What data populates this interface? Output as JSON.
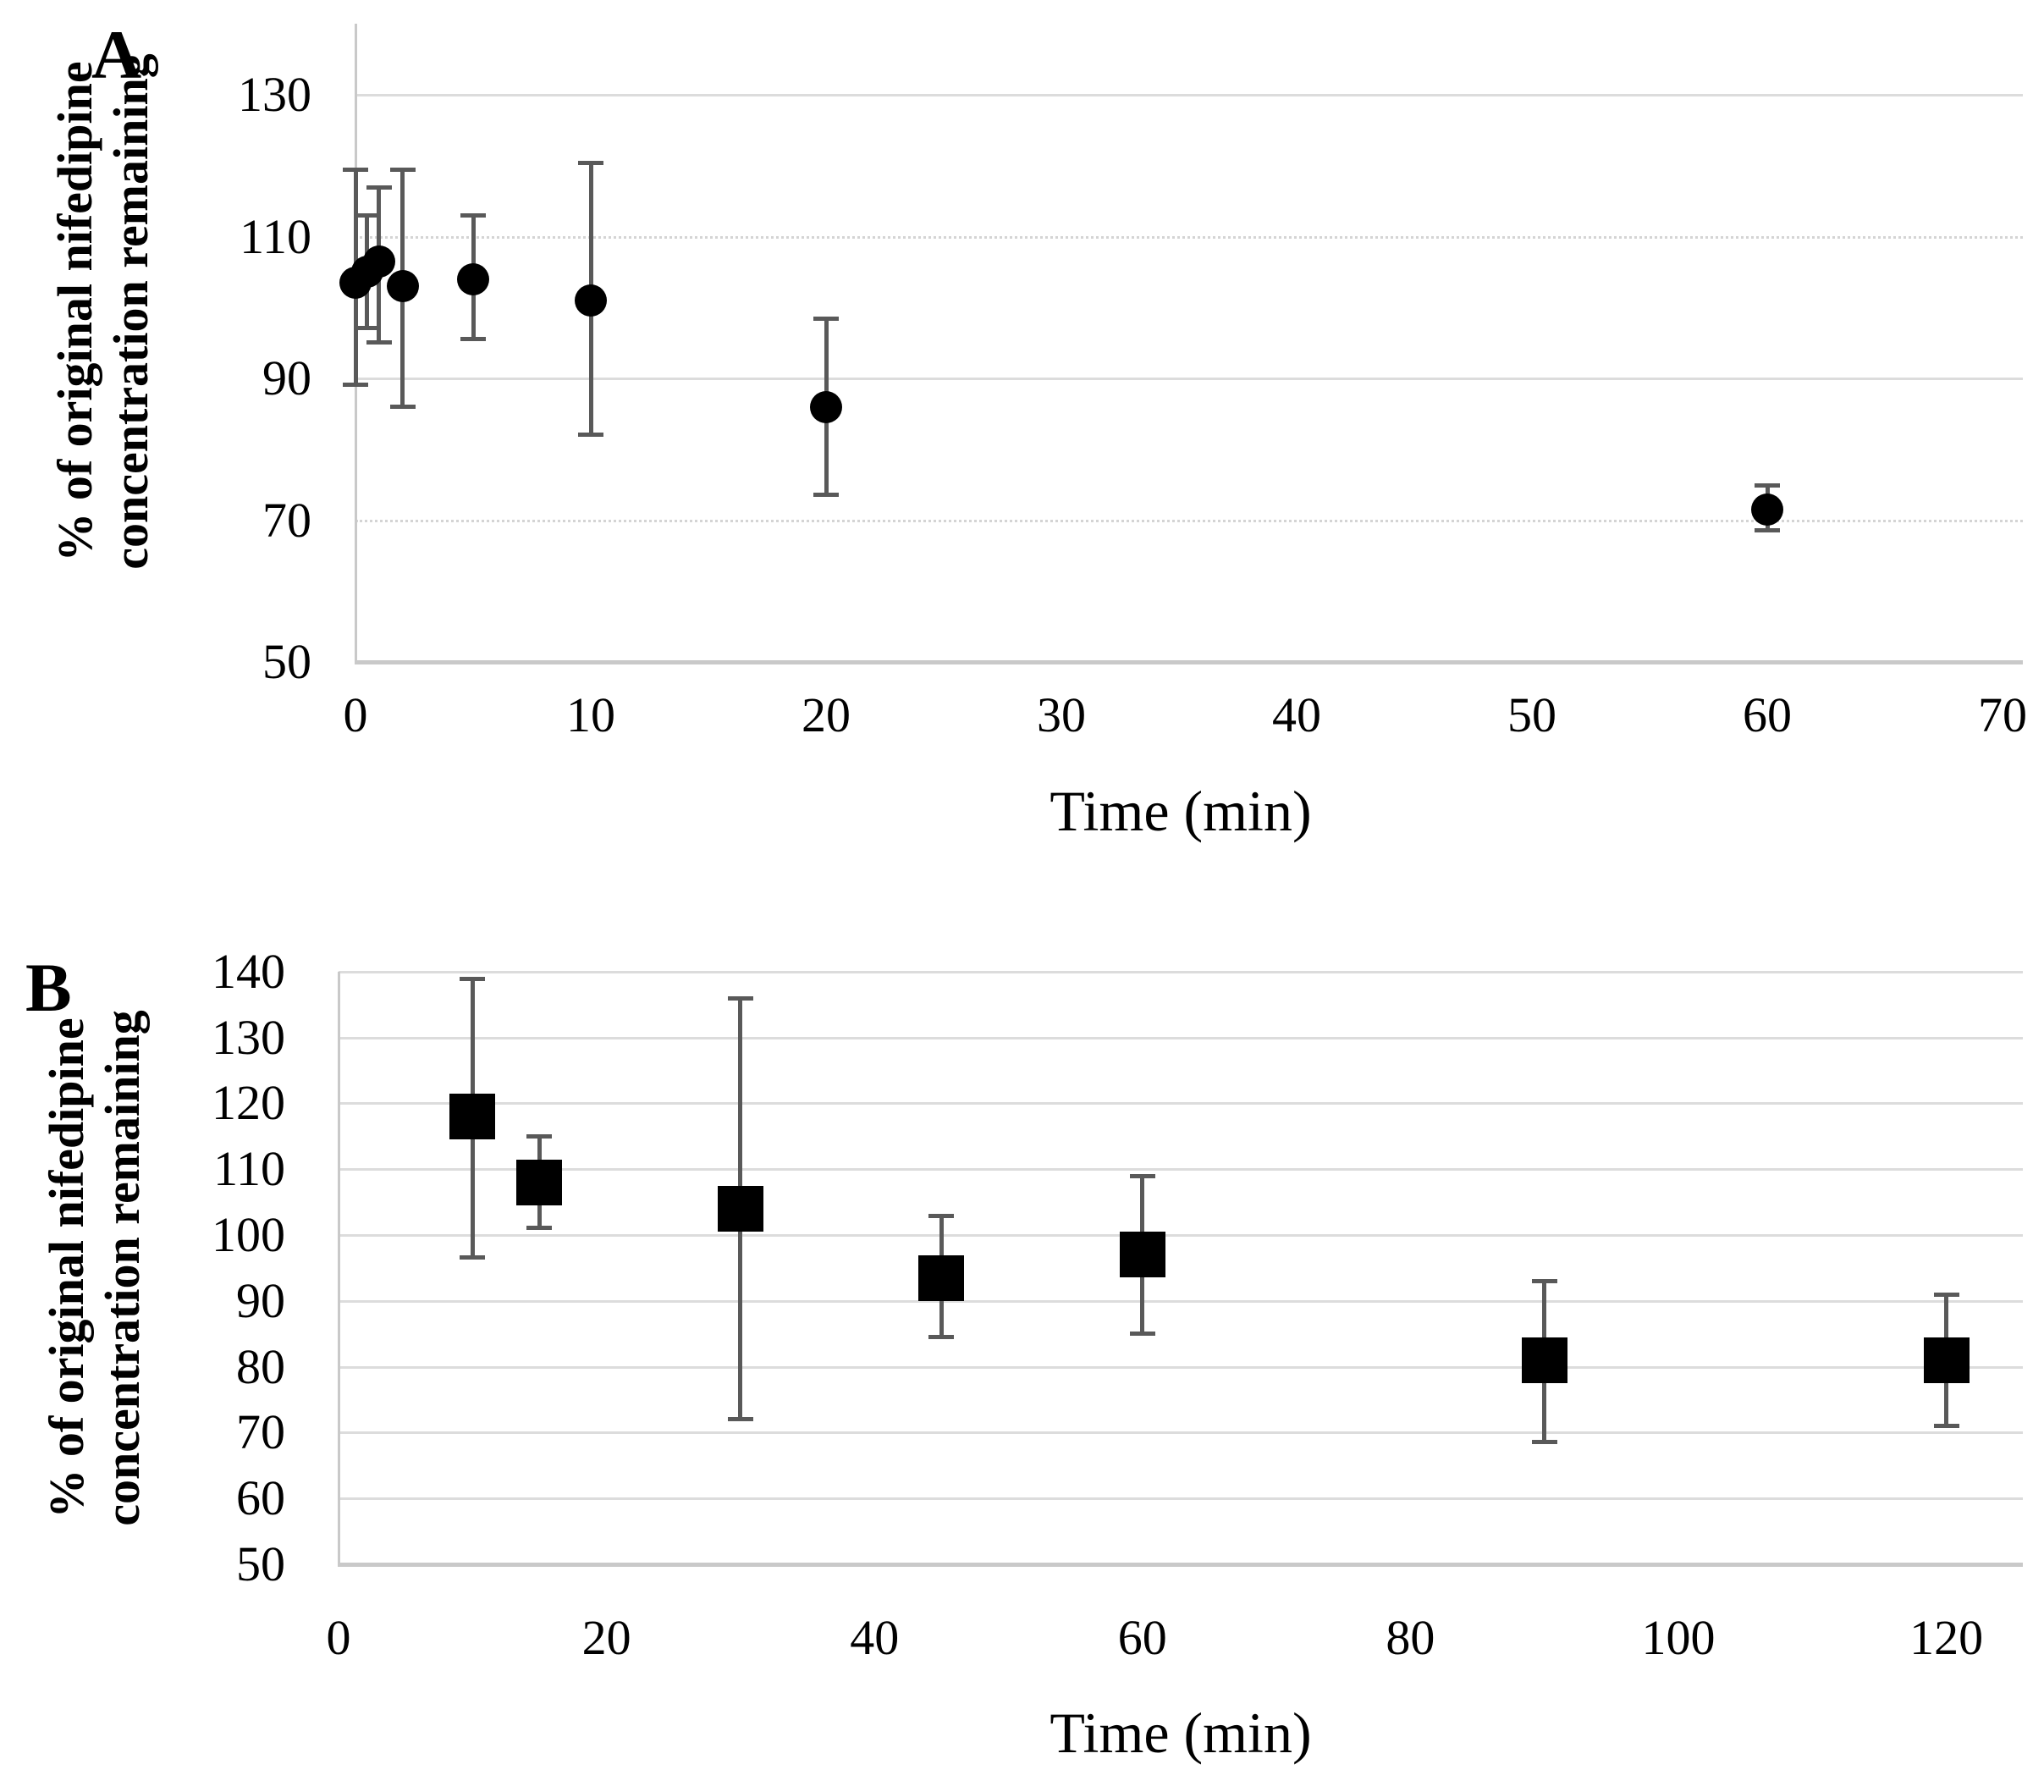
{
  "figure": {
    "panels": [
      {
        "letter": "A",
        "y_axis_label_line1": "% of original nifedipine",
        "y_axis_label_line2": "concentration remaining",
        "x_axis_label": "Time (min)"
      },
      {
        "letter": "B",
        "y_axis_label_line1": "% of original nifedipine",
        "y_axis_label_line2": "concentration remaining",
        "x_axis_label": "Time (min)"
      }
    ]
  },
  "chart_data": [
    {
      "type": "scatter",
      "panel": "A",
      "marker": "circle",
      "marker_color": "#000000",
      "error_bar_color": "#595959",
      "title": "",
      "xlabel": "Time (min)",
      "ylabel": "% of original nifedipine concentration remaining",
      "xlim": [
        0,
        70
      ],
      "ylim": [
        50,
        140
      ],
      "x_ticks": [
        0,
        10,
        20,
        30,
        40,
        50,
        60,
        70
      ],
      "y_ticks": [
        130,
        110,
        90,
        70,
        50
      ],
      "grid": true,
      "dotted_gridlines_at": [
        110,
        70
      ],
      "legend_position": "none",
      "points": [
        {
          "x": 0,
          "y": 103.5,
          "err_lo": 89,
          "err_hi": 119.5
        },
        {
          "x": 0.5,
          "y": 105,
          "err_lo": 97,
          "err_hi": 113
        },
        {
          "x": 1,
          "y": 106.5,
          "err_lo": 95,
          "err_hi": 117
        },
        {
          "x": 2,
          "y": 103,
          "err_lo": 86,
          "err_hi": 119.5
        },
        {
          "x": 5,
          "y": 104,
          "err_lo": 95.5,
          "err_hi": 113
        },
        {
          "x": 10,
          "y": 101,
          "err_lo": 82,
          "err_hi": 120.5
        },
        {
          "x": 20,
          "y": 86,
          "err_lo": 73.5,
          "err_hi": 98.5
        },
        {
          "x": 60,
          "y": 71.5,
          "err_lo": 68.5,
          "err_hi": 75
        }
      ]
    },
    {
      "type": "scatter",
      "panel": "B",
      "marker": "square",
      "marker_color": "#000000",
      "error_bar_color": "#595959",
      "title": "",
      "xlabel": "Time (min)",
      "ylabel": "% of original nifedipine concentration remaining",
      "xlim": [
        0,
        120
      ],
      "ylim": [
        50,
        140
      ],
      "x_ticks": [
        0,
        20,
        40,
        60,
        80,
        100,
        120
      ],
      "y_ticks": [
        140,
        130,
        120,
        110,
        100,
        90,
        80,
        70,
        60,
        50
      ],
      "grid": true,
      "dotted_gridlines_at": [],
      "legend_position": "none",
      "points": [
        {
          "x": 10,
          "y": 118,
          "err_lo": 96.5,
          "err_hi": 139
        },
        {
          "x": 15,
          "y": 108,
          "err_lo": 101,
          "err_hi": 115
        },
        {
          "x": 30,
          "y": 104,
          "err_lo": 72,
          "err_hi": 136
        },
        {
          "x": 45,
          "y": 93.5,
          "err_lo": 84.5,
          "err_hi": 103
        },
        {
          "x": 60,
          "y": 97,
          "err_lo": 85,
          "err_hi": 109
        },
        {
          "x": 90,
          "y": 81,
          "err_lo": 68.5,
          "err_hi": 93
        },
        {
          "x": 120,
          "y": 81,
          "err_lo": 71,
          "err_hi": 91
        }
      ]
    }
  ]
}
